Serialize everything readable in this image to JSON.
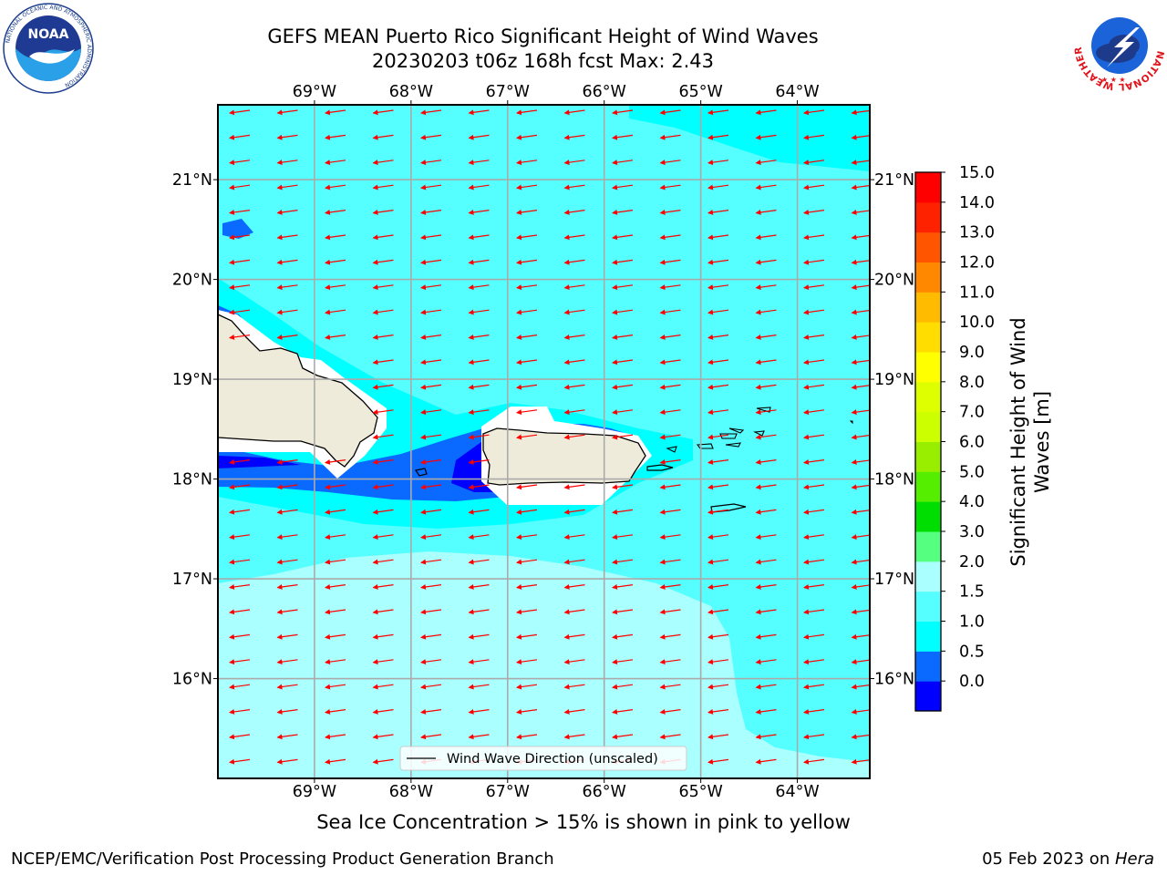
{
  "header": {
    "title_line1": "GEFS MEAN Puerto Rico Significant Height of Wind Waves",
    "title_line2": "20230203 t06z 168h fcst   Max: 2.43"
  },
  "logos": {
    "left": {
      "name": "noaa-logo",
      "text": "NOAA",
      "ring_text": "NATIONAL OCEANIC AND ATMOSPHERIC ADMINISTRATION",
      "bottom_text": "U.S. DEPARTMENT OF COMMERCE"
    },
    "right": {
      "name": "nws-logo",
      "ring_text": "NATIONAL WEATHER SERVICE"
    }
  },
  "map": {
    "lon_ticks": [
      "69°W",
      "68°W",
      "67°W",
      "66°W",
      "65°W",
      "64°W"
    ],
    "lat_ticks": [
      "21°N",
      "20°N",
      "19°N",
      "18°N",
      "17°N",
      "16°N"
    ],
    "lon_values": [
      -69,
      -68,
      -67,
      -66,
      -65,
      -64
    ],
    "lat_values": [
      21,
      20,
      19,
      18,
      17,
      16
    ],
    "lon_range": [
      -70,
      -63.25
    ],
    "lat_range": [
      15.0,
      21.75
    ],
    "legend_label": "Wind Wave Direction (unscaled)",
    "arrow_direction": "west-southwest",
    "arrow_color": "#ff0000",
    "land_color": "#efebdb",
    "islands": [
      "Hispaniola",
      "Puerto Rico",
      "Mona Island",
      "Vieques",
      "Culebra",
      "Virgin Islands",
      "St. Croix"
    ]
  },
  "colorbar": {
    "label": "Significant Height of Wind Waves [m]",
    "label_line1": "Significant Height of Wind",
    "label_line2": "Waves [m]",
    "ticks": [
      "15.0",
      "14.0",
      "13.0",
      "12.0",
      "11.0",
      "10.0",
      "9.0",
      "8.0",
      "7.0",
      "6.0",
      "5.0",
      "4.0",
      "3.0",
      "2.0",
      "1.5",
      "1.0",
      "0.5",
      "0.0"
    ],
    "colors": [
      "#0000ff",
      "#0a6aff",
      "#00ffff",
      "#55ffff",
      "#aaffff",
      "#55ff80",
      "#00dd00",
      "#55ee00",
      "#99ee00",
      "#ccff00",
      "#ddff00",
      "#ffff00",
      "#ffdd00",
      "#ffbb00",
      "#ff8800",
      "#ff5500",
      "#ff2200",
      "#ff0000"
    ]
  },
  "chart_data": {
    "type": "heatmap",
    "title": "GEFS MEAN Puerto Rico Significant Height of Wind Waves",
    "subtitle": "20230203 t06z 168h fcst   Max: 2.43",
    "max": 2.43,
    "x_range": [
      -70,
      -63.25
    ],
    "y_range": [
      15.0,
      21.75
    ],
    "grid": true,
    "legend_placement": "bottom-center"
  },
  "footer": {
    "note": "Sea Ice Concentration > 15% is shown in pink to yellow",
    "left": "NCEP/EMC/Verification Post Processing Product Generation Branch",
    "date": "05 Feb 2023 on ",
    "host": "Hera"
  }
}
